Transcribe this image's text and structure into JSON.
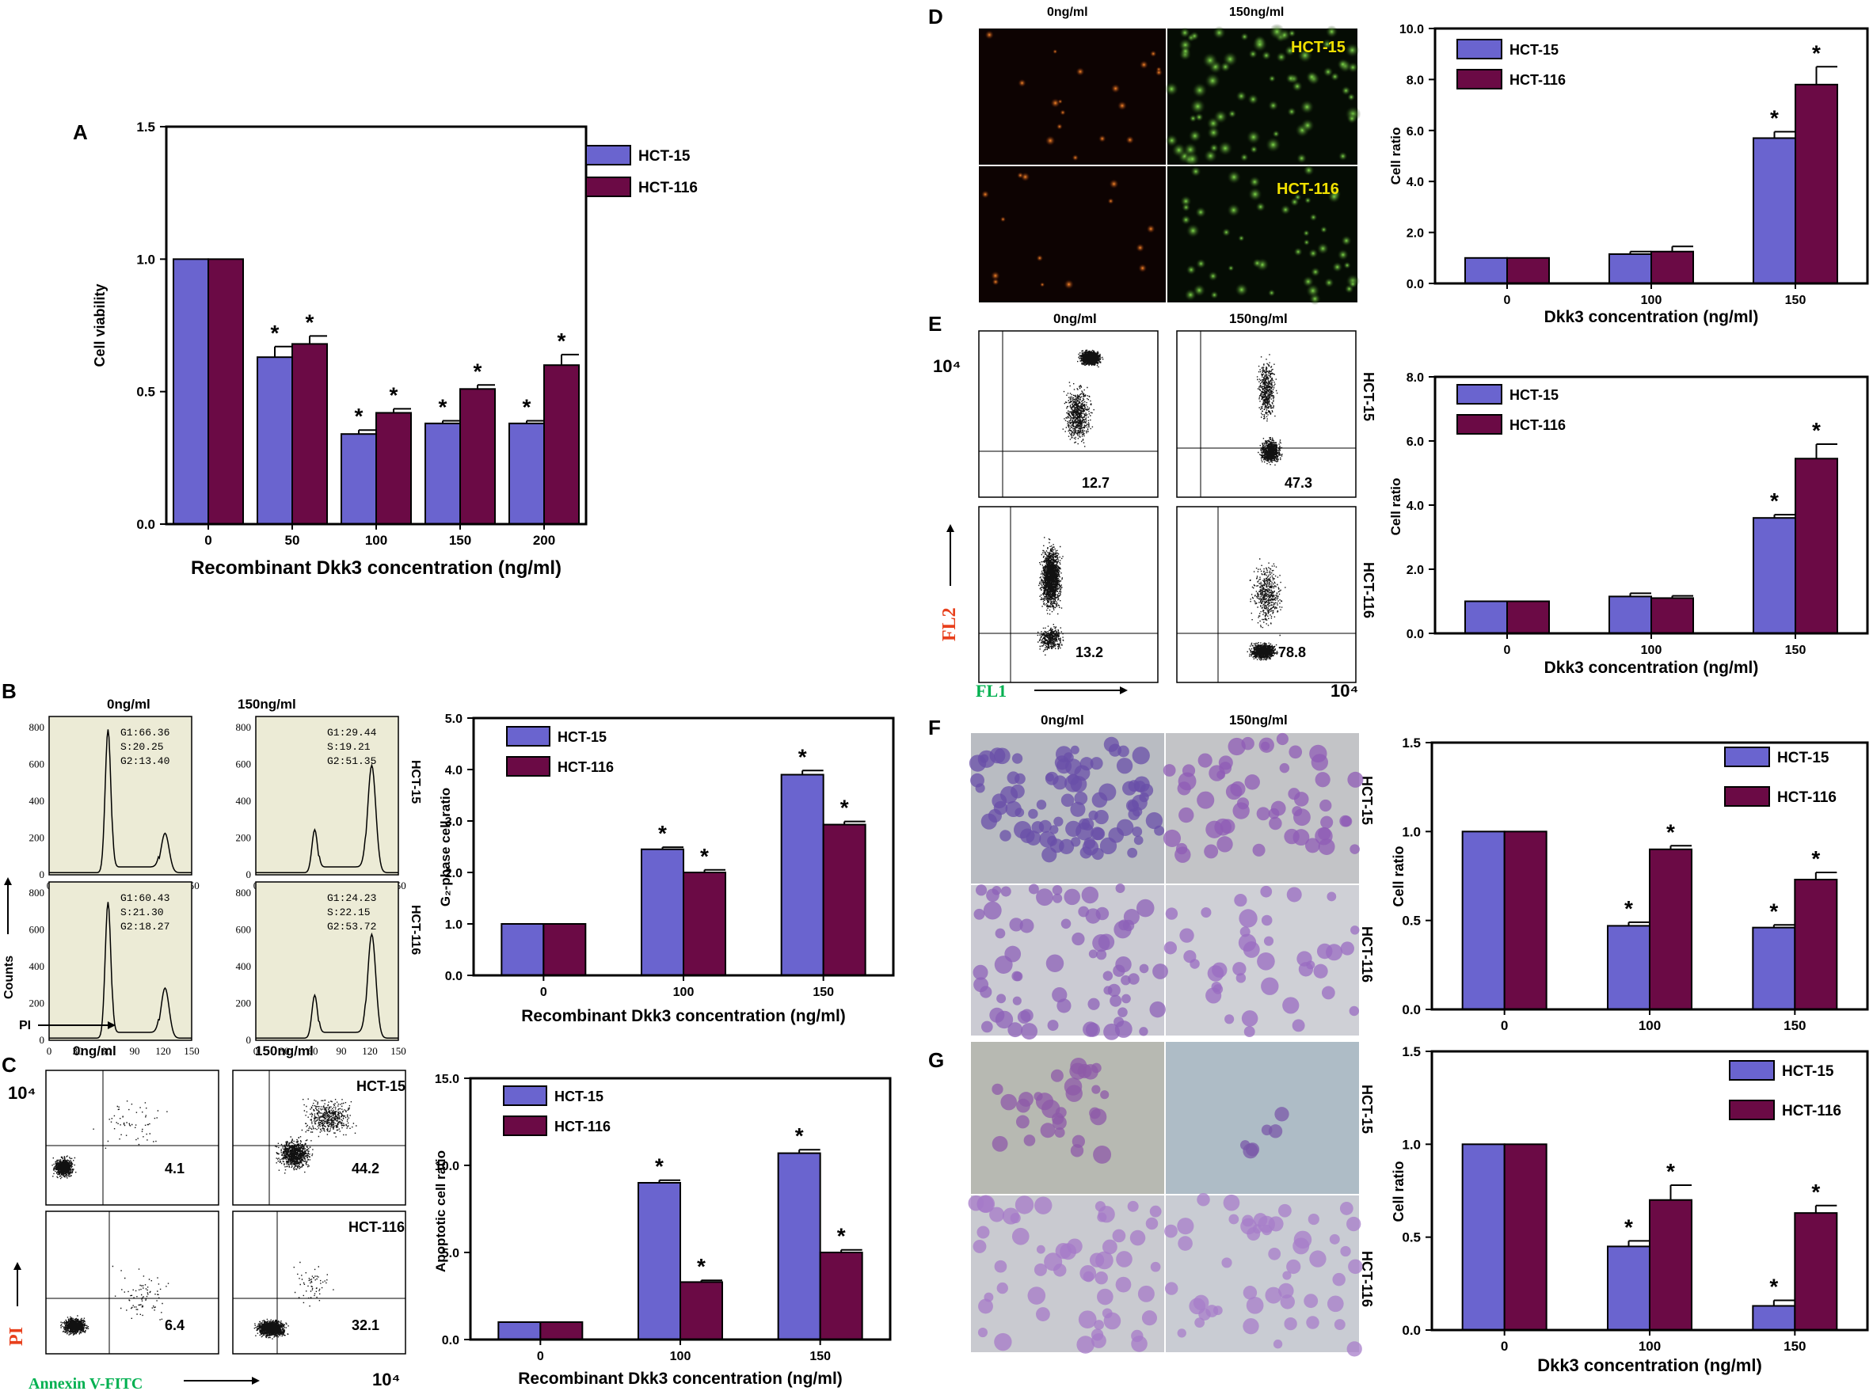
{
  "colors": {
    "hct15": "#6a64cf",
    "hct116": "#6b0a45",
    "histo_bg": "#ecebd6",
    "purple_text": "#00b050",
    "red_text": "#e8401c"
  },
  "legend": {
    "s1": "HCT-15",
    "s2": "HCT-116"
  },
  "panel_letters": {
    "A": "A",
    "B": "B",
    "C": "C",
    "D": "D",
    "E": "E",
    "F": "F",
    "G": "G"
  },
  "doses": {
    "zero": "0ng/ml",
    "high": "150ng/ml"
  },
  "row_labels": {
    "r1": "HCT-15",
    "r2": "HCT-116"
  },
  "panel_b": {
    "y_ticks": [
      "0",
      "200",
      "400",
      "600",
      "800"
    ],
    "x_ticks": [
      "0",
      "30",
      "60",
      "90",
      "120",
      "150"
    ],
    "stats": [
      [
        "G1:66.36",
        "S:20.25",
        "G2:13.40"
      ],
      [
        "G1:29.44",
        "S:19.21",
        "G2:51.35"
      ],
      [
        "G1:60.43",
        "S:21.30",
        "G2:18.27"
      ],
      [
        "G1:24.23",
        "S:22.15",
        "G2:53.72"
      ]
    ],
    "ylabel": "Counts",
    "xlabel": "PI"
  },
  "panel_c_flow": {
    "decade": "10⁴",
    "values": [
      "4.1",
      "44.2",
      "6.4",
      "32.1"
    ],
    "ylabel": "PI",
    "xlabel": "Annexin V-FITC",
    "cell_labels": [
      "HCT-15",
      "HCT-116"
    ]
  },
  "panel_d_micro": {
    "cell_labels": [
      "HCT-15",
      "HCT-116"
    ]
  },
  "panel_e_flow": {
    "decade": "10⁴",
    "decade2": "10⁴",
    "values": [
      "12.7",
      "47.3",
      "13.2",
      "78.8"
    ],
    "ylabel": "FL2",
    "xlabel": "FL1"
  },
  "chart_data": [
    {
      "id": "A",
      "type": "bar",
      "categories": [
        "0",
        "50",
        "100",
        "150",
        "200"
      ],
      "series": [
        {
          "name": "HCT-15",
          "values": [
            1.0,
            0.63,
            0.34,
            0.38,
            0.38
          ],
          "errors": [
            0,
            0.04,
            0.015,
            0.01,
            0.01
          ]
        },
        {
          "name": "HCT-116",
          "values": [
            1.0,
            0.68,
            0.42,
            0.51,
            0.6
          ],
          "errors": [
            0,
            0.03,
            0.015,
            0.015,
            0.04
          ]
        }
      ],
      "stars": [
        [
          false,
          true,
          true,
          true,
          true
        ],
        [
          false,
          true,
          true,
          true,
          true
        ]
      ],
      "ylabel": "Cell  viability",
      "xlabel": "Recombinant Dkk3 concentration (ng/ml)",
      "ylim": [
        0,
        1.5
      ],
      "yticks": [
        "0.0",
        "0.5",
        "1.0",
        "1.5"
      ],
      "legend_position": "top-right"
    },
    {
      "id": "B",
      "type": "bar",
      "categories": [
        "0",
        "100",
        "150"
      ],
      "series": [
        {
          "name": "HCT-15",
          "values": [
            1.0,
            2.45,
            3.9
          ],
          "errors": [
            0,
            0.04,
            0.08
          ]
        },
        {
          "name": "HCT-116",
          "values": [
            1.0,
            2.0,
            2.93
          ],
          "errors": [
            0,
            0.05,
            0.06
          ]
        }
      ],
      "stars": [
        [
          false,
          true,
          true
        ],
        [
          false,
          true,
          true
        ]
      ],
      "ylabel": "G₂-phase cell ratio",
      "xlabel": "Recombinant Dkk3 concentration (ng/ml)",
      "ylim": [
        0,
        5
      ],
      "yticks": [
        "0.0",
        "1.0",
        "2.0",
        "3.0",
        "4.0",
        "5.0"
      ],
      "legend_position": "top-left"
    },
    {
      "id": "C",
      "type": "bar",
      "categories": [
        "0",
        "100",
        "150"
      ],
      "series": [
        {
          "name": "HCT-15",
          "values": [
            1.0,
            9.0,
            10.7
          ],
          "errors": [
            0,
            0.15,
            0.2
          ]
        },
        {
          "name": "HCT-116",
          "values": [
            1.0,
            3.3,
            5.0
          ],
          "errors": [
            0,
            0.1,
            0.15
          ]
        }
      ],
      "stars": [
        [
          false,
          true,
          true
        ],
        [
          false,
          true,
          true
        ]
      ],
      "ylabel": "Apoptotic cell ratio",
      "xlabel": "Recombinant Dkk3 concentration (ng/ml)",
      "ylim": [
        0,
        15
      ],
      "yticks": [
        "0.0",
        "5.0",
        "10.0",
        "15.0"
      ],
      "legend_position": "top-left"
    },
    {
      "id": "D",
      "type": "bar",
      "categories": [
        "0",
        "100",
        "150"
      ],
      "series": [
        {
          "name": "HCT-15",
          "values": [
            1.0,
            1.15,
            5.7
          ],
          "errors": [
            0,
            0.1,
            0.25
          ]
        },
        {
          "name": "HCT-116",
          "values": [
            1.0,
            1.25,
            7.8
          ],
          "errors": [
            0,
            0.2,
            0.7
          ]
        }
      ],
      "stars": [
        [
          false,
          false,
          true
        ],
        [
          false,
          false,
          true
        ]
      ],
      "ylabel": "Cell ratio",
      "xlabel": "Dkk3 concentration (ng/ml)",
      "ylim": [
        0,
        10
      ],
      "yticks": [
        "0.0",
        "2.0",
        "4.0",
        "6.0",
        "8.0",
        "10.0"
      ],
      "legend_position": "top-left"
    },
    {
      "id": "E",
      "type": "bar",
      "categories": [
        "0",
        "100",
        "150"
      ],
      "series": [
        {
          "name": "HCT-15",
          "values": [
            1.0,
            1.15,
            3.6
          ],
          "errors": [
            0,
            0.1,
            0.1
          ]
        },
        {
          "name": "HCT-116",
          "values": [
            1.0,
            1.1,
            5.45
          ],
          "errors": [
            0,
            0.07,
            0.45
          ]
        }
      ],
      "stars": [
        [
          false,
          false,
          true
        ],
        [
          false,
          false,
          true
        ]
      ],
      "ylabel": "Cell ratio",
      "xlabel": "Dkk3 concentration (ng/ml)",
      "ylim": [
        0,
        8
      ],
      "yticks": [
        "0.0",
        "2.0",
        "4.0",
        "6.0",
        "8.0"
      ],
      "legend_position": "top-left"
    },
    {
      "id": "F",
      "type": "bar",
      "categories": [
        "0",
        "100",
        "150"
      ],
      "series": [
        {
          "name": "HCT-15",
          "values": [
            1.0,
            0.47,
            0.46
          ],
          "errors": [
            0,
            0.02,
            0.015
          ]
        },
        {
          "name": "HCT-116",
          "values": [
            1.0,
            0.9,
            0.73
          ],
          "errors": [
            0,
            0.02,
            0.04
          ]
        }
      ],
      "stars": [
        [
          false,
          true,
          true
        ],
        [
          false,
          true,
          true
        ]
      ],
      "ylabel": "Cell ratio",
      "xlabel": "",
      "ylim": [
        0,
        1.5
      ],
      "yticks": [
        "0.0",
        "0.5",
        "1.0",
        "1.5"
      ],
      "legend_position": "top-right"
    },
    {
      "id": "G",
      "type": "bar",
      "categories": [
        "0",
        "100",
        "150"
      ],
      "series": [
        {
          "name": "HCT-15",
          "values": [
            1.0,
            0.45,
            0.13
          ],
          "errors": [
            0,
            0.03,
            0.03
          ]
        },
        {
          "name": "HCT-116",
          "values": [
            1.0,
            0.7,
            0.63
          ],
          "errors": [
            0,
            0.08,
            0.04
          ]
        }
      ],
      "stars": [
        [
          false,
          true,
          true
        ],
        [
          false,
          true,
          true
        ]
      ],
      "ylabel": "Cell ratio",
      "xlabel": "Dkk3 concentration (ng/ml)",
      "ylim": [
        0,
        1.5
      ],
      "yticks": [
        "0.0",
        "0.5",
        "1.0",
        "1.5"
      ],
      "legend_position": "top-right"
    }
  ]
}
